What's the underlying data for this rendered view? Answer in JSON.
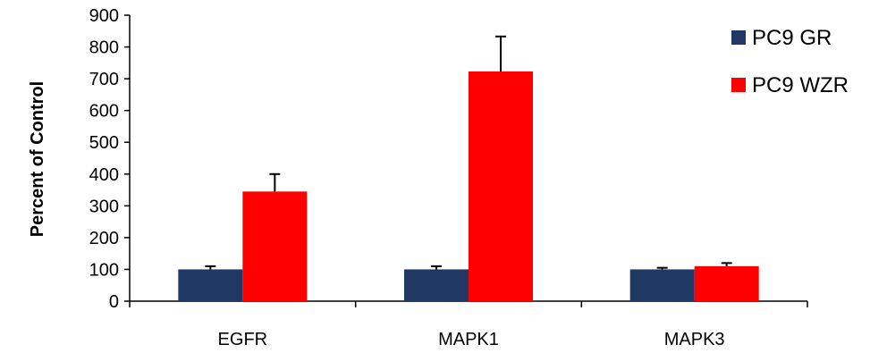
{
  "chart_data": {
    "type": "bar",
    "title": "",
    "xlabel": "",
    "ylabel": "Percent of Control",
    "ylim": [
      0,
      900
    ],
    "yticks": [
      0,
      100,
      200,
      300,
      400,
      500,
      600,
      700,
      800,
      900
    ],
    "categories": [
      "EGFR",
      "MAPK1",
      "MAPK3"
    ],
    "series": [
      {
        "name": "PC9 GR",
        "color": "#1F3864",
        "values": [
          100,
          100,
          100
        ],
        "error": [
          10,
          10,
          5
        ]
      },
      {
        "name": "PC9 WZR",
        "color": "#FF0000",
        "values": [
          345,
          723,
          110
        ],
        "error": [
          55,
          110,
          10
        ]
      }
    ],
    "legend": "top-right",
    "grid": false
  }
}
